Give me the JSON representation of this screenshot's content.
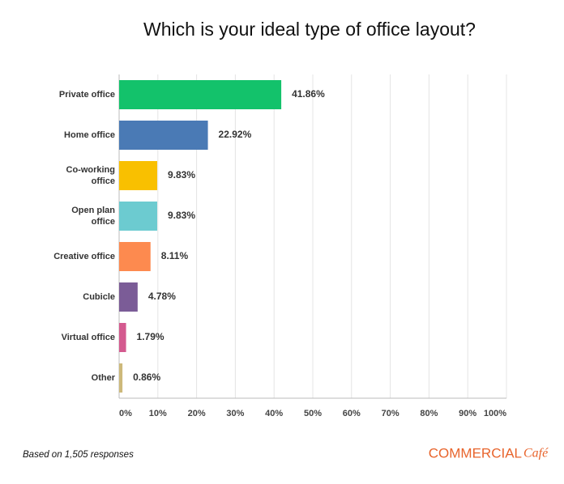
{
  "chart_data": {
    "type": "bar",
    "orientation": "horizontal",
    "title": "Which is your ideal type of office layout?",
    "categories": [
      "Private office",
      "Home office",
      "Co-working\noffice",
      "Open plan\noffice",
      "Creative office",
      "Cubicle",
      "Virtual office",
      "Other"
    ],
    "values": [
      41.86,
      22.92,
      9.83,
      9.83,
      8.11,
      4.78,
      1.79,
      0.86
    ],
    "value_labels": [
      "41.86%",
      "22.92%",
      "9.83%",
      "9.83%",
      "8.11%",
      "4.78%",
      "1.79%",
      "0.86%"
    ],
    "colors": [
      "#13c26b",
      "#4a7ab5",
      "#f9c000",
      "#6ccbd0",
      "#fd8a4f",
      "#7b5c97",
      "#d45a8f",
      "#cdb97a"
    ],
    "xlim": [
      0,
      100
    ],
    "xticks": [
      {
        "value": 0,
        "label": "0%"
      },
      {
        "value": 10,
        "label": "10%"
      },
      {
        "value": 20,
        "label": "20%"
      },
      {
        "value": 30,
        "label": "30%"
      },
      {
        "value": 40,
        "label": "40%"
      },
      {
        "value": 50,
        "label": "50%"
      },
      {
        "value": 60,
        "label": "60%"
      },
      {
        "value": 70,
        "label": "70%"
      },
      {
        "value": 80,
        "label": "80%"
      },
      {
        "value": 90,
        "label": "90%"
      },
      {
        "value": 100,
        "label": "100%"
      }
    ],
    "grid": true
  },
  "footer": {
    "note": "Based on 1,505 responses",
    "brand": "COMMERCIAL",
    "brand_suffix": "Café"
  }
}
